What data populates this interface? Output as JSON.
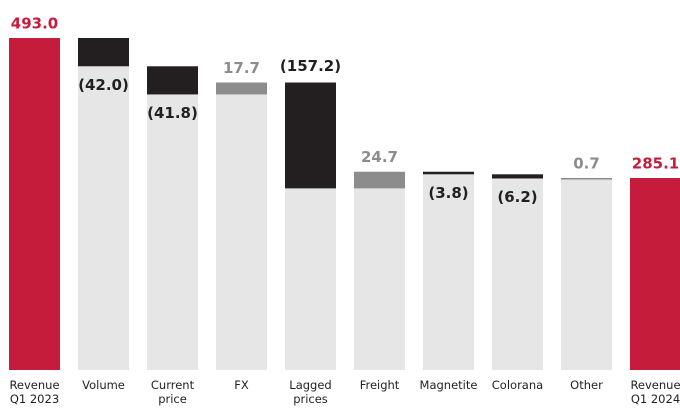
{
  "chart_data": {
    "type": "waterfall",
    "categories": [
      "Revenue Q1 2023",
      "Volume",
      "Current price",
      "FX",
      "Lagged prices",
      "Freight",
      "Magnetite",
      "Colorana",
      "Other",
      "Revenue Q1 2024"
    ],
    "values": [
      493.0,
      -42.0,
      -41.8,
      17.7,
      -157.2,
      24.7,
      -3.8,
      -6.2,
      0.7,
      285.1
    ],
    "value_labels": [
      "493.0",
      "(42.0)",
      "(41.8)",
      "17.7",
      "(157.2)",
      "24.7",
      "(3.8)",
      "(6.2)",
      "0.7",
      "285.1"
    ],
    "totals": [
      0,
      9
    ],
    "colors": {
      "total": "#c51c3c",
      "increase": "#8c8c8c",
      "decrease": "#231f20",
      "base": "#e6e6e7"
    },
    "ylim": [
      0,
      493.0
    ]
  }
}
